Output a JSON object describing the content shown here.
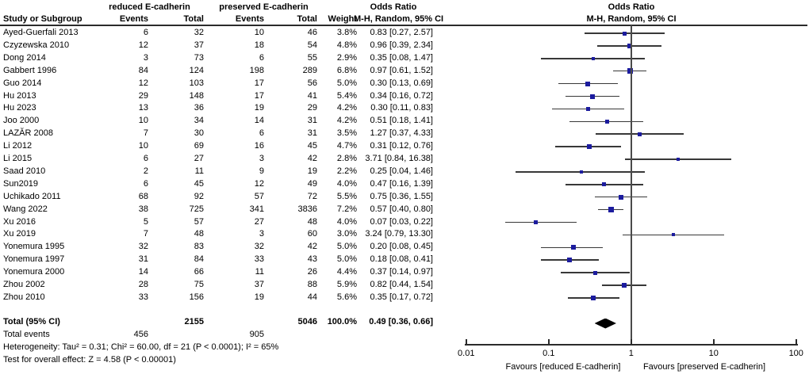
{
  "header": {
    "col_study": "Study or Subgroup",
    "group_reduced": "reduced E-cadherin",
    "group_preserved": "preserved E-cadherin",
    "col_events": "Events",
    "col_total": "Total",
    "col_weight": "Weight",
    "or_title": "Odds Ratio",
    "or_subtitle": "M-H, Random, 95% CI"
  },
  "plot_header": {
    "title": "Odds Ratio",
    "subtitle": "M-H, Random, 95% CI"
  },
  "footer": {
    "total_label": "Total (95% CI)",
    "total_reduced": "2155",
    "total_preserved": "5046",
    "total_weight": "100.0%",
    "total_or_text": "0.49 [0.36, 0.66]",
    "events_label": "Total events",
    "events_reduced": "456",
    "events_preserved": "905",
    "heterogeneity": "Heterogeneity: Tau² = 0.31; Chi² = 60.00, df = 21 (P < 0.0001); I² = 65%",
    "overall_effect": "Test for overall effect: Z = 4.58 (P < 0.00001)"
  },
  "chart_data": {
    "type": "scatter",
    "subtype": "forest-plot (random-effects meta-analysis, odds ratios on log scale)",
    "title": "Odds Ratio M-H, Random, 95% CI",
    "x_scale": "log10",
    "x_ticks": [
      "0.01",
      "0.1",
      "1",
      "10",
      "100"
    ],
    "xlim": [
      0.01,
      100
    ],
    "xlabel_left": "Favours [reduced E-cadherin]",
    "xlabel_right": "Favours [preserved E-cadherin]",
    "marker_color": "#1c1c9e",
    "diamond_color": "#000000",
    "rows": [
      {
        "study": "Ayed-Guerfali 2013",
        "events1": "6",
        "total1": "32",
        "events2": "10",
        "total2": "46",
        "weight": "3.8%",
        "or_text": "0.83 [0.27, 2.57]",
        "or": 0.83,
        "lo": 0.27,
        "hi": 2.57,
        "w": 3.8
      },
      {
        "study": "Czyzewska 2010",
        "events1": "12",
        "total1": "37",
        "events2": "18",
        "total2": "54",
        "weight": "4.8%",
        "or_text": "0.96 [0.39, 2.34]",
        "or": 0.96,
        "lo": 0.39,
        "hi": 2.34,
        "w": 4.8
      },
      {
        "study": "Dong 2014",
        "events1": "3",
        "total1": "73",
        "events2": "6",
        "total2": "55",
        "weight": "2.9%",
        "or_text": "0.35 [0.08, 1.47]",
        "or": 0.35,
        "lo": 0.08,
        "hi": 1.47,
        "w": 2.9
      },
      {
        "study": "Gabbert 1996",
        "events1": "84",
        "total1": "124",
        "events2": "198",
        "total2": "289",
        "weight": "6.8%",
        "or_text": "0.97 [0.61, 1.52]",
        "or": 0.97,
        "lo": 0.61,
        "hi": 1.52,
        "w": 6.8
      },
      {
        "study": "Guo 2014",
        "events1": "12",
        "total1": "103",
        "events2": "17",
        "total2": "56",
        "weight": "5.0%",
        "or_text": "0.30 [0.13, 0.69]",
        "or": 0.3,
        "lo": 0.13,
        "hi": 0.69,
        "w": 5.0
      },
      {
        "study": "Hu 2013",
        "events1": "29",
        "total1": "148",
        "events2": "17",
        "total2": "41",
        "weight": "5.4%",
        "or_text": "0.34 [0.16, 0.72]",
        "or": 0.34,
        "lo": 0.16,
        "hi": 0.72,
        "w": 5.4
      },
      {
        "study": "Hu 2023",
        "events1": "13",
        "total1": "36",
        "events2": "19",
        "total2": "29",
        "weight": "4.2%",
        "or_text": "0.30 [0.11, 0.83]",
        "or": 0.3,
        "lo": 0.11,
        "hi": 0.83,
        "w": 4.2
      },
      {
        "study": "Joo 2000",
        "events1": "10",
        "total1": "34",
        "events2": "14",
        "total2": "31",
        "weight": "4.2%",
        "or_text": "0.51 [0.18, 1.41]",
        "or": 0.51,
        "lo": 0.18,
        "hi": 1.41,
        "w": 4.2
      },
      {
        "study": "LAZĂR 2008",
        "events1": "7",
        "total1": "30",
        "events2": "6",
        "total2": "31",
        "weight": "3.5%",
        "or_text": "1.27 [0.37, 4.33]",
        "or": 1.27,
        "lo": 0.37,
        "hi": 4.33,
        "w": 3.5
      },
      {
        "study": "Li 2012",
        "events1": "10",
        "total1": "69",
        "events2": "16",
        "total2": "45",
        "weight": "4.7%",
        "or_text": "0.31 [0.12, 0.76]",
        "or": 0.31,
        "lo": 0.12,
        "hi": 0.76,
        "w": 4.7
      },
      {
        "study": "Li 2015",
        "events1": "6",
        "total1": "27",
        "events2": "3",
        "total2": "42",
        "weight": "2.8%",
        "or_text": "3.71 [0.84, 16.38]",
        "or": 3.71,
        "lo": 0.84,
        "hi": 16.38,
        "w": 2.8
      },
      {
        "study": "Saad 2010",
        "events1": "2",
        "total1": "11",
        "events2": "9",
        "total2": "19",
        "weight": "2.2%",
        "or_text": "0.25 [0.04, 1.46]",
        "or": 0.25,
        "lo": 0.04,
        "hi": 1.46,
        "w": 2.2
      },
      {
        "study": "Sun2019",
        "events1": "6",
        "total1": "45",
        "events2": "12",
        "total2": "49",
        "weight": "4.0%",
        "or_text": "0.47 [0.16, 1.39]",
        "or": 0.47,
        "lo": 0.16,
        "hi": 1.39,
        "w": 4.0
      },
      {
        "study": "Uchikado 2011",
        "events1": "68",
        "total1": "92",
        "events2": "57",
        "total2": "72",
        "weight": "5.5%",
        "or_text": "0.75 [0.36, 1.55]",
        "or": 0.75,
        "lo": 0.36,
        "hi": 1.55,
        "w": 5.5
      },
      {
        "study": "Wang 2022",
        "events1": "38",
        "total1": "725",
        "events2": "341",
        "total2": "3836",
        "weight": "7.2%",
        "or_text": "0.57 [0.40, 0.80]",
        "or": 0.57,
        "lo": 0.4,
        "hi": 0.8,
        "w": 7.2
      },
      {
        "study": "Xu 2016",
        "events1": "5",
        "total1": "57",
        "events2": "27",
        "total2": "48",
        "weight": "4.0%",
        "or_text": "0.07 [0.03, 0.22]",
        "or": 0.07,
        "lo": 0.03,
        "hi": 0.22,
        "w": 4.0
      },
      {
        "study": "Xu 2019",
        "events1": "7",
        "total1": "48",
        "events2": "3",
        "total2": "60",
        "weight": "3.0%",
        "or_text": "3.24 [0.79, 13.30]",
        "or": 3.24,
        "lo": 0.79,
        "hi": 13.3,
        "w": 3.0
      },
      {
        "study": "Yonemura 1995",
        "events1": "32",
        "total1": "83",
        "events2": "32",
        "total2": "42",
        "weight": "5.0%",
        "or_text": "0.20 [0.08, 0.45]",
        "or": 0.2,
        "lo": 0.08,
        "hi": 0.45,
        "w": 5.0
      },
      {
        "study": "Yonemura 1997",
        "events1": "31",
        "total1": "84",
        "events2": "33",
        "total2": "43",
        "weight": "5.0%",
        "or_text": "0.18 [0.08, 0.41]",
        "or": 0.18,
        "lo": 0.08,
        "hi": 0.41,
        "w": 5.0
      },
      {
        "study": "Yonemura 2000",
        "events1": "14",
        "total1": "66",
        "events2": "11",
        "total2": "26",
        "weight": "4.4%",
        "or_text": "0.37 [0.14, 0.97]",
        "or": 0.37,
        "lo": 0.14,
        "hi": 0.97,
        "w": 4.4
      },
      {
        "study": "Zhou 2002",
        "events1": "28",
        "total1": "75",
        "events2": "37",
        "total2": "88",
        "weight": "5.9%",
        "or_text": "0.82 [0.44, 1.54]",
        "or": 0.82,
        "lo": 0.44,
        "hi": 1.54,
        "w": 5.9
      },
      {
        "study": "Zhou 2010",
        "events1": "33",
        "total1": "156",
        "events2": "19",
        "total2": "44",
        "weight": "5.6%",
        "or_text": "0.35 [0.17, 0.72]",
        "or": 0.35,
        "lo": 0.17,
        "hi": 0.72,
        "w": 5.6
      }
    ],
    "total": {
      "or": 0.49,
      "lo": 0.36,
      "hi": 0.66
    }
  }
}
